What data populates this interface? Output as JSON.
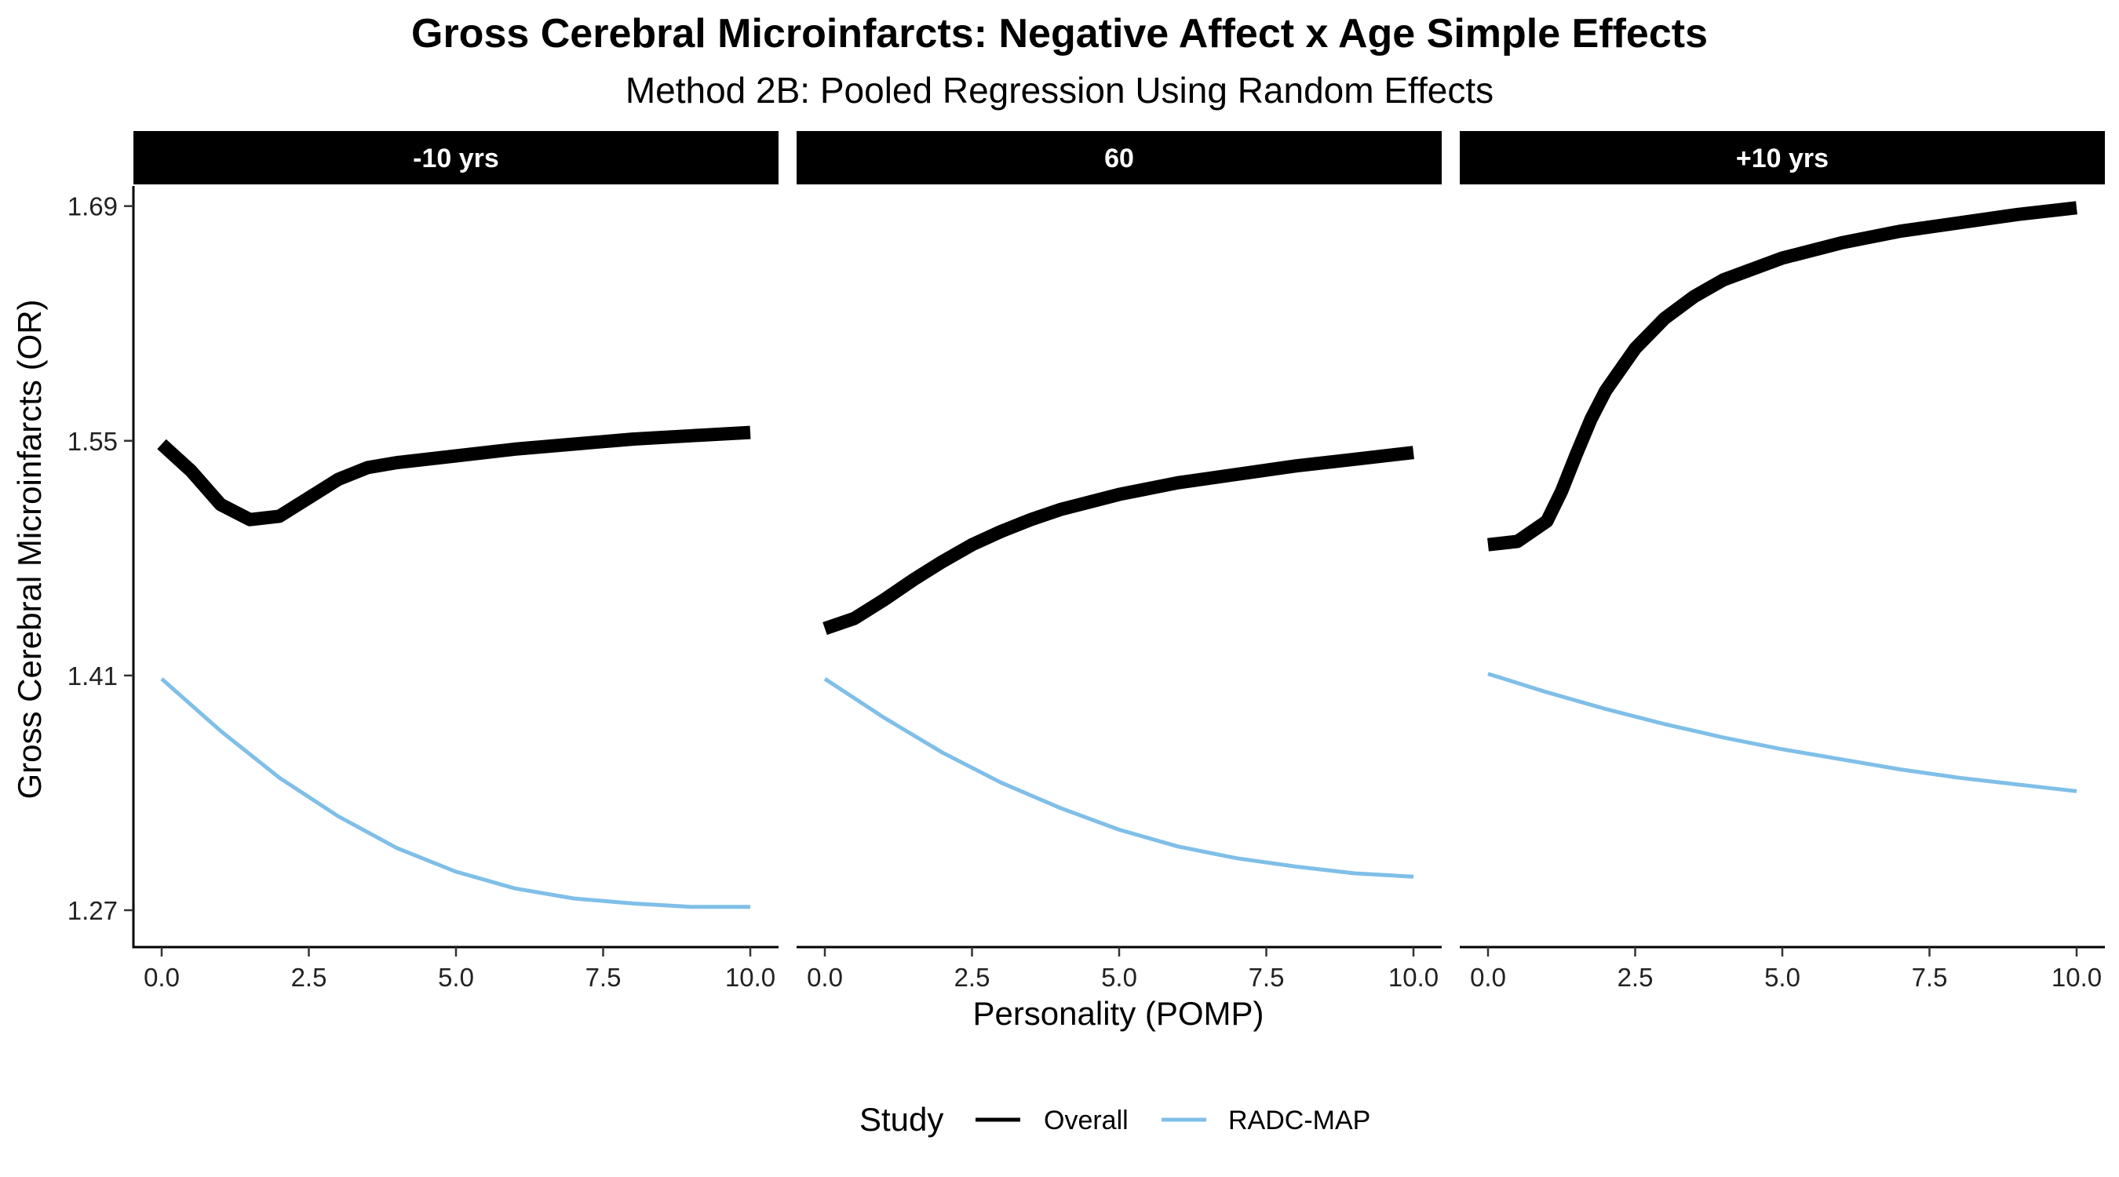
{
  "chart_data": {
    "type": "line",
    "title": "Gross Cerebral Microinfarcts: Negative Affect x Age Simple Effects",
    "subtitle": "Method 2B: Pooled Regression Using Random Effects",
    "xlabel": "Personality (POMP)",
    "ylabel": "Gross Cerebral Microinfarcts (OR)",
    "xlim": [
      0,
      10
    ],
    "ylim": [
      1.248,
      1.702
    ],
    "x_ticks": [
      0,
      2.5,
      5,
      7.5,
      10
    ],
    "x_tick_labels": [
      "0.0",
      "2.5",
      "5.0",
      "7.5",
      "10.0"
    ],
    "y_ticks": [
      1.27,
      1.41,
      1.55,
      1.69
    ],
    "y_tick_labels": [
      "1.27",
      "1.41",
      "1.55",
      "1.69"
    ],
    "grid": false,
    "legend": {
      "title": "Study",
      "placement": "bottom"
    },
    "series_styles": [
      {
        "name": "Overall",
        "color": "#000000",
        "line": "thick"
      },
      {
        "name": "RADC-MAP",
        "color": "#7fbfe8",
        "line": "thin"
      }
    ],
    "panels": [
      {
        "label": "-10 yrs",
        "series": [
          {
            "name": "Overall",
            "x": [
              0,
              0.5,
              1,
              1.5,
              2,
              2.5,
              3,
              3.5,
              4,
              5,
              6,
              7,
              8,
              9,
              10
            ],
            "y": [
              1.548,
              1.532,
              1.512,
              1.503,
              1.505,
              1.516,
              1.527,
              1.534,
              1.537,
              1.541,
              1.545,
              1.548,
              1.551,
              1.553,
              1.555
            ]
          },
          {
            "name": "RADC-MAP",
            "x": [
              0,
              1,
              2,
              3,
              4,
              5,
              6,
              7,
              8,
              9,
              10
            ],
            "y": [
              1.408,
              1.377,
              1.349,
              1.326,
              1.307,
              1.293,
              1.283,
              1.277,
              1.274,
              1.272,
              1.272
            ]
          }
        ]
      },
      {
        "label": "60",
        "series": [
          {
            "name": "Overall",
            "x": [
              0,
              0.5,
              1,
              1.5,
              2,
              2.5,
              3,
              3.5,
              4,
              5,
              6,
              7,
              8,
              9,
              10
            ],
            "y": [
              1.438,
              1.444,
              1.455,
              1.467,
              1.478,
              1.488,
              1.496,
              1.503,
              1.509,
              1.518,
              1.525,
              1.53,
              1.535,
              1.539,
              1.543
            ]
          },
          {
            "name": "RADC-MAP",
            "x": [
              0,
              1,
              2,
              3,
              4,
              5,
              6,
              7,
              8,
              9,
              10
            ],
            "y": [
              1.408,
              1.385,
              1.364,
              1.346,
              1.331,
              1.318,
              1.308,
              1.301,
              1.296,
              1.292,
              1.29
            ]
          }
        ]
      },
      {
        "label": "+10 yrs",
        "series": [
          {
            "name": "Overall",
            "x": [
              0,
              0.5,
              1,
              1.25,
              1.5,
              1.75,
              2,
              2.5,
              3,
              3.5,
              4,
              5,
              6,
              7,
              8,
              9,
              10
            ],
            "y": [
              1.488,
              1.49,
              1.502,
              1.52,
              1.542,
              1.563,
              1.58,
              1.605,
              1.623,
              1.636,
              1.646,
              1.659,
              1.668,
              1.675,
              1.68,
              1.685,
              1.689
            ]
          },
          {
            "name": "RADC-MAP",
            "x": [
              0,
              1,
              2,
              3,
              4,
              5,
              6,
              7,
              8,
              9,
              10
            ],
            "y": [
              1.411,
              1.4,
              1.39,
              1.381,
              1.373,
              1.366,
              1.36,
              1.354,
              1.349,
              1.345,
              1.341
            ]
          }
        ]
      }
    ]
  }
}
